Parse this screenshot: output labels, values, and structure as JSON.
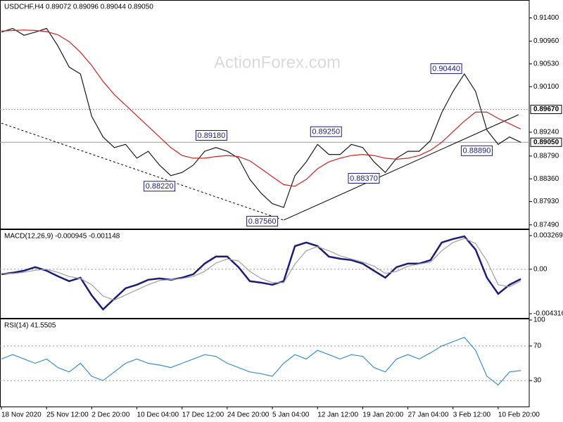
{
  "chart_data": [
    {
      "type": "line",
      "title": "USDCHF,H4  0.89072 0.89096 0.89044 0.89050",
      "watermark": "ActionForex.com",
      "categories": [
        "18 Nov 2020",
        null,
        null,
        null,
        "25 Nov 12:00",
        null,
        null,
        null,
        "2 Dec 20:00",
        null,
        null,
        null,
        "10 Dec 04:00",
        null,
        null,
        null,
        "17 Dec 12:00",
        null,
        null,
        null,
        "24 Dec 20:00",
        null,
        null,
        null,
        "5 Jan 04:00",
        null,
        null,
        null,
        "12 Jan 12:00",
        null,
        null,
        null,
        "19 Jan 20:00",
        null,
        null,
        null,
        "27 Jan 04:00",
        null,
        null,
        null,
        "3 Feb 12:00",
        null,
        null,
        null,
        "10 Feb 20:00",
        null,
        null
      ],
      "series": [
        {
          "color": "#1a1a1a",
          "values": [
            0.9113,
            0.912,
            0.9107,
            0.9113,
            0.912,
            0.9087,
            0.9047,
            0.9034,
            0.8954,
            0.8915,
            0.8895,
            0.8901,
            0.8875,
            0.8888,
            0.8862,
            0.8842,
            0.8848,
            0.8862,
            0.8888,
            0.8895,
            0.8888,
            0.8875,
            0.8835,
            0.8809,
            0.8789,
            0.8782,
            0.8842,
            0.8868,
            0.8901,
            0.8882,
            0.8882,
            0.8901,
            0.8895,
            0.8868,
            0.8848,
            0.8875,
            0.8888,
            0.8888,
            0.8908,
            0.8961,
            0.9001,
            0.9034,
            0.9001,
            0.8928,
            0.8901,
            0.8915,
            0.8905
          ]
        },
        {
          "color": "#d42020",
          "values": [
            0.9115,
            0.9116,
            0.9117,
            0.9116,
            0.9114,
            0.9108,
            0.9095,
            0.9075,
            0.905,
            0.902,
            0.8995,
            0.8975,
            0.8955,
            0.8935,
            0.8915,
            0.8895,
            0.888,
            0.8875,
            0.8875,
            0.8878,
            0.888,
            0.8878,
            0.887,
            0.8855,
            0.884,
            0.8825,
            0.8822,
            0.8835,
            0.8855,
            0.8868,
            0.8875,
            0.888,
            0.8882,
            0.888,
            0.8875,
            0.8873,
            0.8875,
            0.888,
            0.889,
            0.8905,
            0.8925,
            0.8945,
            0.8962,
            0.8962,
            0.895,
            0.894,
            0.893
          ]
        }
      ],
      "ylim": [
        0.8742,
        0.9171
      ],
      "yticks": [
        {
          "value": 0.914,
          "label": "0.91400"
        },
        {
          "value": 0.9096,
          "label": "0.90960"
        },
        {
          "value": 0.9053,
          "label": "0.90530"
        },
        {
          "value": 0.901,
          "label": "0.90100"
        },
        {
          "value": 0.8924,
          "label": "0.89240"
        },
        {
          "value": 0.8879,
          "label": "0.88790"
        },
        {
          "value": 0.8836,
          "label": "0.88360"
        },
        {
          "value": 0.8793,
          "label": "0.87930"
        },
        {
          "value": 0.8749,
          "label": "0.87490"
        }
      ],
      "levels": [
        {
          "value": 0.8967,
          "label": "0.89670",
          "style": "dotted"
        },
        {
          "value": 0.8905,
          "label": "0.89050",
          "style": "solid"
        }
      ],
      "trendlines": [
        {
          "style": "dashed",
          "x": [
            0,
            25
          ],
          "values": [
            0.8941,
            0.8758
          ]
        },
        {
          "style": "solid",
          "x": [
            25,
            45.8
          ],
          "values": [
            0.8758,
            0.8957
          ]
        }
      ],
      "annotations": [
        {
          "x": 18.6,
          "value": 0.8918,
          "label": "0.89180"
        },
        {
          "x": 14,
          "value": 0.8822,
          "label": "0.88220"
        },
        {
          "x": 23.1,
          "value": 0.8756,
          "label": "0.87560"
        },
        {
          "x": 28.75,
          "value": 0.8925,
          "label": "0.89250"
        },
        {
          "x": 32.1,
          "value": 0.8837,
          "label": "0.88370"
        },
        {
          "x": 39.4,
          "value": 0.9044,
          "label": "0.90440"
        },
        {
          "x": 42.1,
          "value": 0.8889,
          "label": "0.88890"
        }
      ]
    },
    {
      "type": "line",
      "title": "MACD(12,26,9) -0.000945 -0.001148",
      "series": [
        {
          "color": "#1c1c7a",
          "values": [
            -0.00048,
            -0.00034,
            -0.00014,
            0.00021,
            -0.00014,
            -0.00068,
            -0.00116,
            -0.00082,
            -0.00253,
            -0.0039,
            -0.00287,
            -0.00184,
            -0.0015,
            -0.00102,
            -0.00089,
            -0.00102,
            -0.00082,
            -0.00048,
            0.00055,
            0.00123,
            0.00123,
            0.00021,
            -0.00116,
            -0.0013,
            -0.0015,
            -0.00116,
            0.00225,
            0.0026,
            0.00225,
            0.00123,
            0.00102,
            0.00089,
            0.00055,
            -0.00014,
            -0.00082,
            0.00021,
            0.00055,
            0.00055,
            0.00089,
            0.0026,
            0.00294,
            0.0032,
            0.00191,
            -0.00082,
            -0.00239,
            -0.0015,
            -0.000945
          ]
        },
        {
          "color": "#a0a0a0",
          "values": [
            -0.0004,
            -0.00042,
            -0.0003,
            -0.0001,
            0.0,
            -0.0003,
            -0.0007,
            -0.0009,
            -0.0015,
            -0.0026,
            -0.003,
            -0.0025,
            -0.002,
            -0.0015,
            -0.0011,
            -0.001,
            -0.0009,
            -0.0007,
            -0.0002,
            0.0006,
            0.001,
            0.0008,
            -0.0002,
            -0.0009,
            -0.0013,
            -0.0013,
            0.0005,
            0.0018,
            0.0022,
            0.0018,
            0.0013,
            0.001,
            0.0007,
            0.0003,
            -0.0004,
            -0.0002,
            0.0003,
            0.0005,
            0.0007,
            0.0018,
            0.0026,
            0.003,
            0.0025,
            0.0008,
            -0.0015,
            -0.0017,
            -0.001148
          ]
        }
      ],
      "ylim": [
        -0.004726,
        0.003747
      ],
      "yticks": [
        0.003269,
        {
          "value": 0,
          "label": "0.00"
        },
        -0.004316
      ]
    },
    {
      "type": "line",
      "title": "RSI(14) 41.5505",
      "series": [
        {
          "color": "#3a8fd0",
          "values": [
            55,
            60,
            55,
            50,
            55,
            45,
            40,
            50,
            35,
            30,
            40,
            50,
            55,
            50,
            48,
            45,
            50,
            55,
            60,
            58,
            50,
            45,
            40,
            38,
            35,
            50,
            60,
            55,
            65,
            60,
            55,
            60,
            58,
            45,
            40,
            55,
            60,
            55,
            62,
            70,
            75,
            80,
            65,
            35,
            25,
            40,
            41.5505
          ]
        }
      ],
      "ylim": [
        0,
        100
      ],
      "yticks": [
        100,
        70,
        30
      ],
      "dotted": [
        70,
        30
      ]
    }
  ]
}
